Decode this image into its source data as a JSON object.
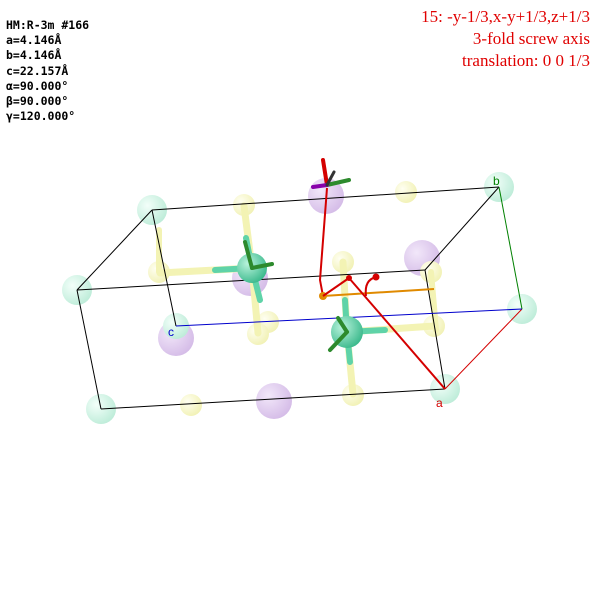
{
  "cell_info": {
    "hm": "HM:R-3m #166",
    "a": "a=4.146Å",
    "b": "b=4.146Å",
    "c": "c=22.157Å",
    "alpha": "α=90.000°",
    "beta": "β=90.000°",
    "gamma": "γ=120.000°"
  },
  "symop": {
    "operation": "15: -y-1/3,x-y+1/3,z+1/3",
    "description": "3-fold screw axis",
    "translation": "translation: 0 0 1/3"
  },
  "axes": {
    "a": "a",
    "b": "b",
    "c": "c"
  },
  "colors": {
    "axis_a": "#d40000",
    "axis_b": "#008000",
    "axis_c": "#0000cc",
    "atom_teal": "#5fd3a8",
    "atom_yellow": "#eeee88",
    "atom_purple": "#b48cd6",
    "screw_axis": "#e08a00",
    "text_red": "#e00000"
  }
}
